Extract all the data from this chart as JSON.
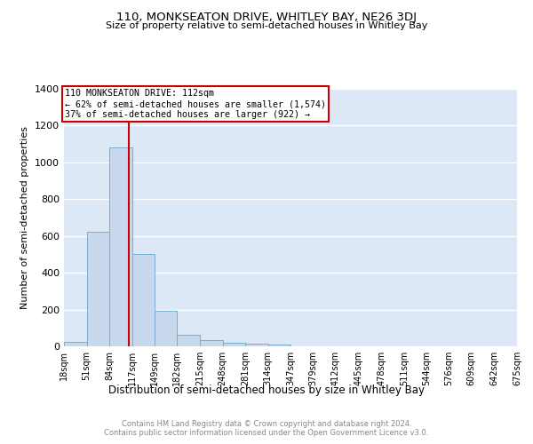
{
  "title": "110, MONKSEATON DRIVE, WHITLEY BAY, NE26 3DJ",
  "subtitle": "Size of property relative to semi-detached houses in Whitley Bay",
  "xlabel": "Distribution of semi-detached houses by size in Whitley Bay",
  "ylabel": "Number of semi-detached properties",
  "property_size": 112,
  "bin_edges": [
    18,
    51,
    84,
    117,
    149,
    182,
    215,
    248,
    281,
    314,
    347,
    379,
    412,
    445,
    478,
    511,
    544,
    576,
    609,
    642,
    675
  ],
  "bar_heights": [
    25,
    625,
    1080,
    500,
    195,
    65,
    32,
    20,
    15,
    10,
    0,
    0,
    0,
    0,
    0,
    0,
    0,
    0,
    0,
    0
  ],
  "bar_color": "#c8d9ee",
  "bar_edgecolor": "#7aadd4",
  "vline_color": "#cc0000",
  "annotation_box_edgecolor": "#cc0000",
  "annotation_text_line1": "110 MONKSEATON DRIVE: 112sqm",
  "annotation_text_line2": "← 62% of semi-detached houses are smaller (1,574)",
  "annotation_text_line3": "37% of semi-detached houses are larger (922) →",
  "ylim": [
    0,
    1400
  ],
  "yticks": [
    0,
    200,
    400,
    600,
    800,
    1000,
    1200,
    1400
  ],
  "background_color": "#dce8f5",
  "grid_color": "#ffffff",
  "footer_line1": "Contains HM Land Registry data © Crown copyright and database right 2024.",
  "footer_line2": "Contains public sector information licensed under the Open Government Licence v3.0."
}
